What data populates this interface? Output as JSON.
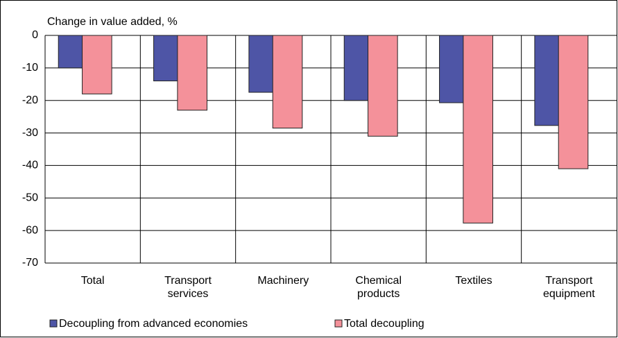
{
  "chart_data": {
    "type": "bar",
    "y_axis_label": "Change in value added, %",
    "categories": [
      "Total",
      "Transport services",
      "Machinery",
      "Chemical products",
      "Textiles",
      "Transport equipment"
    ],
    "series": [
      {
        "name": "Decoupling from advanced economies",
        "color": "#4e55a6",
        "values": [
          -10,
          -14,
          -17.5,
          -20,
          -20.7,
          -27.7
        ]
      },
      {
        "name": "Total decoupling",
        "color": "#f4919a",
        "values": [
          -18,
          -23,
          -28.5,
          -31,
          -57.7,
          -41
        ]
      }
    ],
    "ylim": [
      -70,
      0
    ],
    "yticks": [
      0,
      -10,
      -20,
      -30,
      -40,
      -50,
      -60,
      -70
    ],
    "grid": true
  }
}
